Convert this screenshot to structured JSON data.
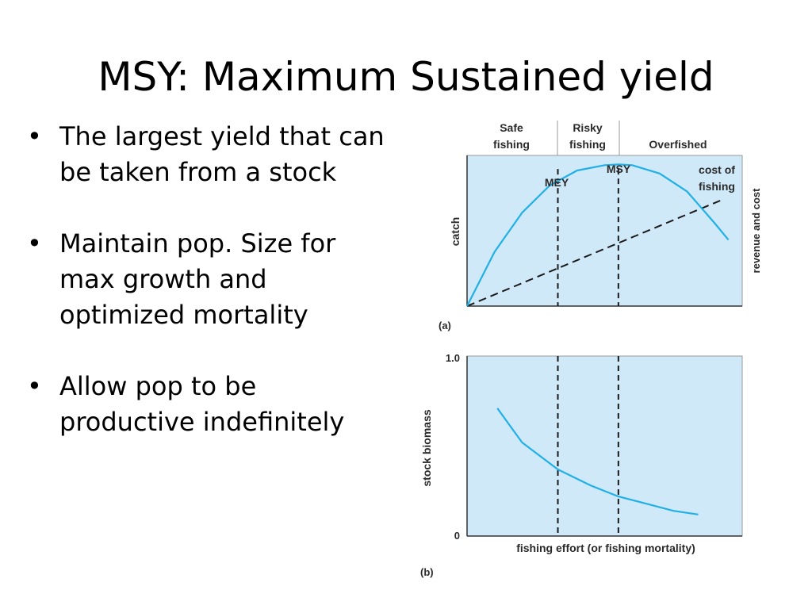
{
  "slide": {
    "title": "MSY: Maximum Sustained yield",
    "bullets": [
      "The largest yield that can be taken from a stock",
      "Maintain pop. Size for max growth and optimized mortality",
      "Allow pop to be productive indefinitely"
    ]
  },
  "figure": {
    "zones": [
      "Safe fishing",
      "Risky fishing",
      "Overfished"
    ],
    "colors": {
      "plot_bg": "#cfe9f9",
      "curve": "#21b0e6",
      "line": "#1a1a1a"
    }
  },
  "chart_data": [
    {
      "type": "line",
      "panel_label": "(a)",
      "ylabel": "catch",
      "ylabel_right": "revenue and cost",
      "zones": [
        "Safe fishing",
        "Risky fishing",
        "Overfished"
      ],
      "markers": [
        {
          "label": "MEY",
          "x": 0.33
        },
        {
          "label": "MSY",
          "x": 0.55
        }
      ],
      "series": [
        {
          "x": [
            0,
            0.1,
            0.2,
            0.3,
            0.4,
            0.5,
            0.55,
            0.6,
            0.7,
            0.8,
            0.9,
            0.95
          ],
          "y": [
            0,
            0.36,
            0.62,
            0.8,
            0.9,
            0.935,
            0.94,
            0.935,
            0.88,
            0.76,
            0.55,
            0.44
          ]
        },
        {
          "name": "cost of fishing",
          "style": "dashed",
          "x": [
            0,
            0.92
          ],
          "y": [
            0,
            0.7
          ]
        }
      ]
    },
    {
      "type": "line",
      "panel_label": "(b)",
      "xlabel": "fishing effort (or fishing mortality)",
      "ylabel": "stock biomass",
      "ylim": [
        0,
        1.0
      ],
      "yticks": [
        "0",
        "1.0"
      ],
      "markers": [
        {
          "x": 0.33
        },
        {
          "x": 0.55
        }
      ],
      "series": [
        {
          "x": [
            0.11,
            0.2,
            0.33,
            0.45,
            0.55,
            0.65,
            0.75,
            0.84
          ],
          "y": [
            0.71,
            0.52,
            0.37,
            0.28,
            0.22,
            0.18,
            0.14,
            0.12
          ]
        }
      ]
    }
  ]
}
